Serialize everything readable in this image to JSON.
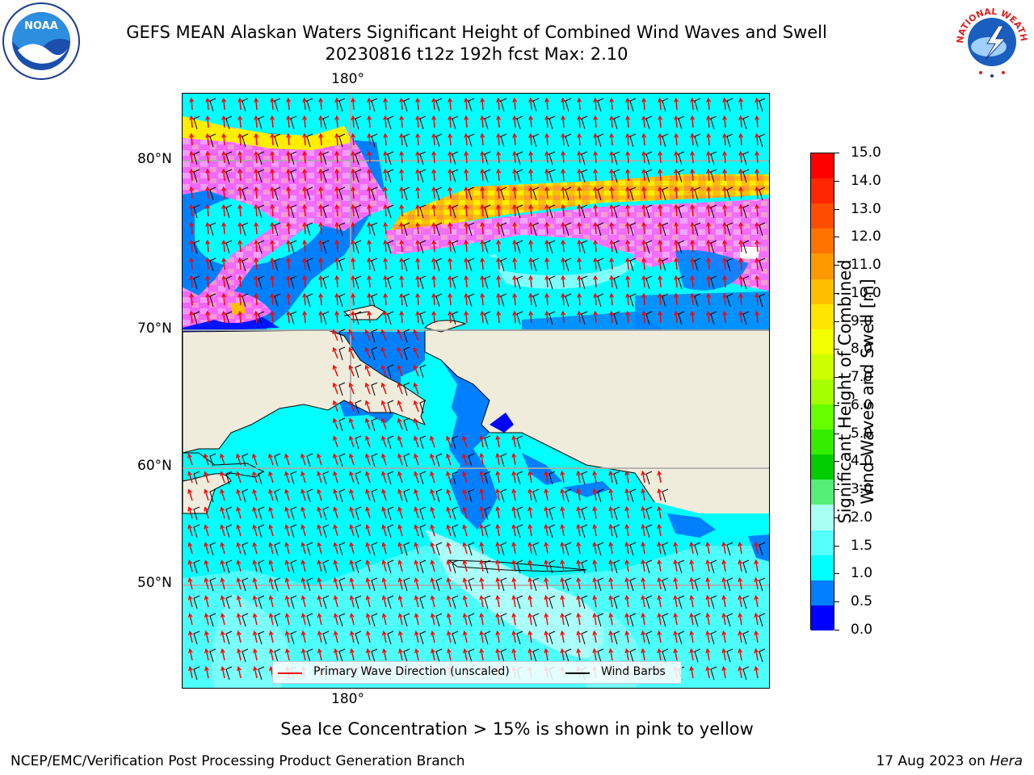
{
  "title": {
    "line1": "GEFS MEAN Alaskan Waters Significant Height of Combined Wind Waves and Swell",
    "line2": "20230816 t12z 192h fcst   Max: 2.10"
  },
  "logos": {
    "left": {
      "text": "NOAA",
      "icon": "noaa-logo"
    },
    "right": {
      "text": "NATIONAL WEATHER SERVICE",
      "icon": "nws-logo"
    }
  },
  "map": {
    "lon_labels": {
      "top": "180°",
      "bottom": "180°"
    },
    "lat_labels": [
      "80°N",
      "70°N",
      "60°N",
      "50°N"
    ],
    "colors": {
      "land": "#efecdc",
      "ocean_main": "#00ffff",
      "ocean_light": "#9ffffa",
      "ocean_blue": "#0080ff",
      "ice_pink": "#ff66ff",
      "ice_yellow": "#ffe000",
      "arrow_red": "#ff0000",
      "barb_black": "#000000"
    }
  },
  "legend": {
    "primary_wave": "Primary Wave Direction (unscaled)",
    "wind_barbs": "Wind Barbs"
  },
  "colorbar": {
    "title_line1": "Significant Height of Combined",
    "title_line2": "Wind Waves and Swell [m]",
    "labels": [
      "15.0",
      "14.0",
      "13.0",
      "12.0",
      "11.0",
      "10.0",
      "9.0",
      "8.0",
      "7.0",
      "6.0",
      "5.0",
      "4.0",
      "3.0",
      "2.0",
      "1.5",
      "1.0",
      "0.5",
      "0.0"
    ],
    "colors": [
      "#ff0000",
      "#ff2600",
      "#ff4d00",
      "#ff7300",
      "#ff9900",
      "#ffbf00",
      "#ffe600",
      "#f2ff00",
      "#ccff00",
      "#a6ff00",
      "#66ff00",
      "#33ee00",
      "#00cc00",
      "#55ee77",
      "#aafff5",
      "#55fffa",
      "#00ffff",
      "#0080ff",
      "#0000ff"
    ]
  },
  "note": "Sea Ice Concentration > 15% is shown in pink to yellow",
  "footer": {
    "left": "NCEP/EMC/Verification Post Processing Product Generation Branch",
    "right_date": "17 Aug 2023 on",
    "right_host": "Hera"
  }
}
